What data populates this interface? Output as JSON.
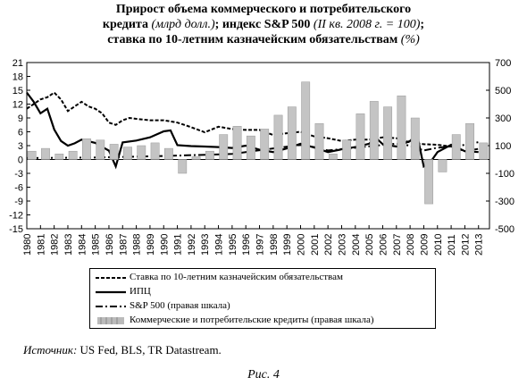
{
  "title": {
    "line1": "Прирост объема коммерческого и потребительского",
    "line2a": "кредита ",
    "line2b": "(млрд долл.)",
    "line2c": "; индекс S&P 500 ",
    "line2d": "(II кв. 2008 г. = 100)",
    "line2e": ";",
    "line3a": "ставка по 10-летним казначейским обязательствам ",
    "line3b": "(%)"
  },
  "legend": [
    {
      "label": "Ставка по 10-летним казначейским обязательствам",
      "style": "dashed"
    },
    {
      "label": "ИПЦ",
      "style": "solid"
    },
    {
      "label": "S&P 500 (правая шкала)",
      "style": "dashdot"
    },
    {
      "label": "Коммерческие и потребительские кредиты (правая шкала)",
      "style": "bars"
    }
  ],
  "source": {
    "prefix": "Источник:",
    "text": " US Fed, BLS, TR Datastream."
  },
  "figure_caption": "Рис. 4",
  "chart_data": {
    "type": "line",
    "x_ticks": [
      "1980",
      "1981",
      "1982",
      "1983",
      "1984",
      "1985",
      "1986",
      "1987",
      "1988",
      "1989",
      "1990",
      "1991",
      "1992",
      "1993",
      "1994",
      "1995",
      "1996",
      "1997",
      "1998",
      "1999",
      "2000",
      "2001",
      "2002",
      "2003",
      "2004",
      "2005",
      "2006",
      "2007",
      "2008",
      "2009",
      "2010",
      "2011",
      "2012",
      "2013"
    ],
    "left_axis": {
      "ticks": [
        21,
        18,
        15,
        12,
        9,
        6,
        3,
        0,
        -3,
        -6,
        -9,
        -12,
        -15
      ],
      "ylim": [
        -15,
        21
      ]
    },
    "right_axis": {
      "ticks": [
        700,
        500,
        300,
        100,
        -100,
        -300,
        -500
      ],
      "ylim": [
        -500,
        700
      ]
    },
    "series": [
      {
        "name": "Ставка по 10-летним казначейским обязательствам",
        "axis": "left",
        "style": "dashed",
        "x": [
          1980,
          1980.5,
          1981,
          1981.5,
          1982,
          1982.5,
          1983,
          1983.5,
          1984,
          1984.5,
          1985,
          1985.5,
          1986,
          1986.5,
          1987,
          1987.5,
          1988,
          1989,
          1990,
          1991,
          1992,
          1993,
          1994,
          1995,
          1996,
          1997,
          1998,
          1999,
          2000,
          2001,
          2002,
          2003,
          2004,
          2005,
          2006,
          2007,
          2008,
          2009,
          2010,
          2011,
          2012,
          2013
        ],
        "y": [
          11,
          12,
          13,
          13.5,
          14.5,
          13,
          10.5,
          11.5,
          12.5,
          11.5,
          11,
          10,
          8,
          7.5,
          8.5,
          9,
          8.8,
          8.5,
          8.5,
          8,
          7,
          5.9,
          7.1,
          6.6,
          6.4,
          6.4,
          5.3,
          5.7,
          6.0,
          5.0,
          4.6,
          4.0,
          4.3,
          4.3,
          4.8,
          4.6,
          3.7,
          3.3,
          3.2,
          2.8,
          1.8,
          2.3
        ]
      },
      {
        "name": "ИПЦ",
        "axis": "left",
        "style": "solid",
        "x": [
          1980,
          1980.5,
          1981,
          1981.5,
          1982,
          1982.5,
          1983,
          1983.5,
          1984,
          1985,
          1986,
          1986.5,
          1987,
          1988,
          1989,
          1990,
          1990.5,
          1991,
          1992,
          1993,
          1994,
          1995,
          1996,
          1997,
          1998,
          1999,
          2000,
          2001,
          2002,
          2003,
          2004,
          2005,
          2005.5,
          2006,
          2007,
          2008,
          2008.5,
          2009,
          2009.5,
          2010,
          2011,
          2012,
          2013
        ],
        "y": [
          14.5,
          12.5,
          10,
          11,
          6.5,
          4,
          3,
          3.5,
          4.3,
          3.6,
          1.9,
          -1.5,
          3.7,
          4.1,
          4.8,
          6.1,
          6.3,
          3.1,
          2.9,
          2.8,
          2.7,
          2.5,
          3.0,
          2.1,
          1.6,
          2.4,
          3.4,
          2.6,
          1.6,
          2.2,
          2.7,
          3.4,
          4.7,
          3.3,
          2.8,
          4.0,
          5.5,
          -1.5,
          -0.5,
          1.6,
          3.2,
          1.8,
          1.6
        ]
      },
      {
        "name": "S&P 500",
        "axis": "right",
        "style": "dashdot",
        "x": [
          1980,
          1985,
          1990,
          1995,
          1998,
          2000,
          2001,
          2002,
          2003,
          2005,
          2007,
          2008,
          2009,
          2010,
          2011,
          2012,
          2013
        ],
        "y": [
          10,
          14,
          25,
          40,
          80,
          105,
          90,
          65,
          75,
          95,
          115,
          100,
          65,
          85,
          95,
          105,
          125
        ]
      },
      {
        "name": "Коммерческие и потребительские кредиты",
        "axis": "right",
        "style": "bars",
        "x": [
          1980,
          1981,
          1982,
          1983,
          1984,
          1985,
          1986,
          1987,
          1988,
          1989,
          1990,
          1991,
          1992,
          1993,
          1994,
          1995,
          1996,
          1997,
          1998,
          1999,
          2000,
          2001,
          2002,
          2003,
          2004,
          2005,
          2006,
          2007,
          2008,
          2009,
          2010,
          2011,
          2012,
          2013
        ],
        "y": [
          60,
          80,
          40,
          60,
          150,
          140,
          110,
          90,
          100,
          120,
          80,
          -100,
          20,
          60,
          180,
          240,
          170,
          220,
          320,
          380,
          560,
          260,
          40,
          140,
          330,
          420,
          380,
          460,
          300,
          -320,
          -90,
          180,
          260,
          120
        ]
      }
    ]
  }
}
